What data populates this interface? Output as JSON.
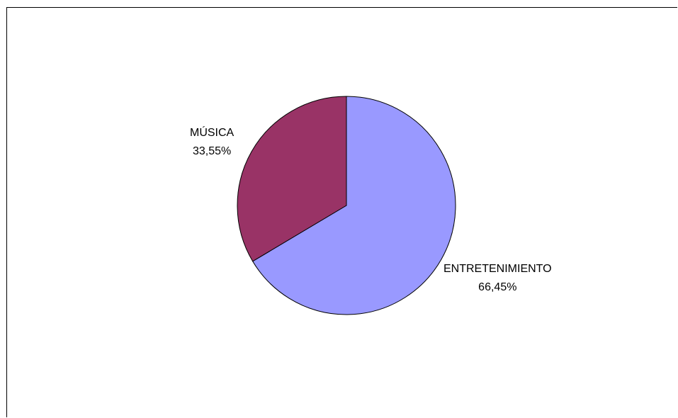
{
  "chart_data": {
    "type": "pie",
    "title": "",
    "start": "12 o'clock, clockwise",
    "slices": [
      {
        "name": "ENTRETENIMIENTO",
        "value": 66.45,
        "label": "66,45%",
        "color": "#9999ff"
      },
      {
        "name": "MÚSICA",
        "value": 33.55,
        "label": "33,55%",
        "color": "#993366"
      }
    ],
    "outline_color": "#000000"
  }
}
